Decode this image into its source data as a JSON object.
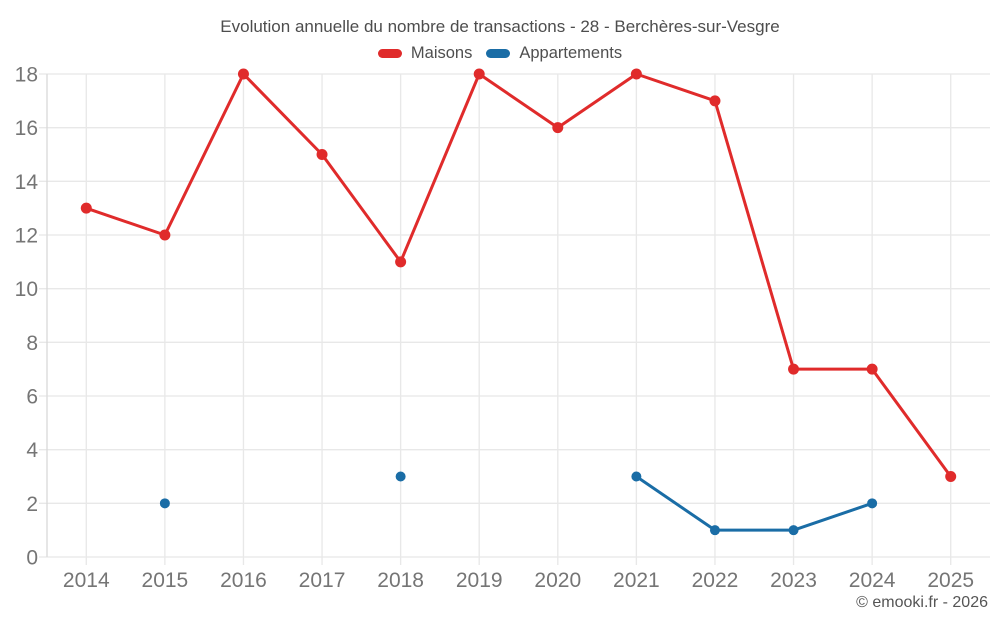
{
  "header": {
    "title": "Evolution annuelle du nombre de transactions - 28 - Berchères-sur-Vesgre"
  },
  "footer": {
    "copyright": "© emooki.fr - 2026"
  },
  "chart_data": {
    "type": "line",
    "title": "Evolution annuelle du nombre de transactions - 28 - Berchères-sur-Vesgre",
    "xlabel": "",
    "ylabel": "",
    "categories": [
      "2014",
      "2015",
      "2016",
      "2017",
      "2018",
      "2019",
      "2020",
      "2021",
      "2022",
      "2023",
      "2024",
      "2025"
    ],
    "series": [
      {
        "name": "Maisons",
        "color": "#e02b2b",
        "marker_radius": 5.5,
        "values": [
          13,
          12,
          18,
          15,
          11,
          18,
          16,
          18,
          17,
          7,
          7,
          3
        ]
      },
      {
        "name": "Appartements",
        "color": "#1a6da6",
        "marker_radius": 5,
        "values": [
          null,
          2,
          null,
          null,
          3,
          null,
          null,
          3,
          1,
          1,
          2,
          null
        ]
      }
    ],
    "ylim": [
      0,
      18
    ],
    "yticks": [
      0,
      2,
      4,
      6,
      8,
      10,
      12,
      14,
      16,
      18
    ],
    "grid": true,
    "legend_position": "top"
  },
  "style": {
    "grid_color": "#e8e8e8",
    "axis_border_color": "#d9d9d9",
    "tick_label_color": "#757575"
  }
}
